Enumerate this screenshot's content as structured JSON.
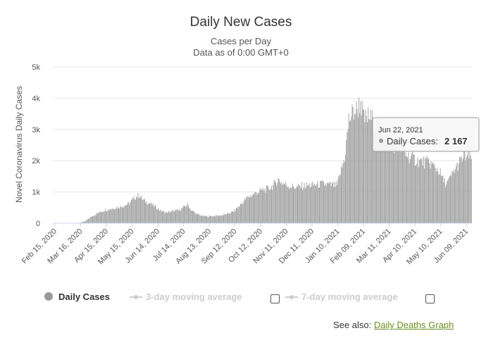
{
  "chart_data": {
    "type": "bar",
    "title": "Daily New Cases",
    "subtitle_lines": [
      "Cases per Day",
      "Data as of 0:00 GMT+0"
    ],
    "ylabel": "Novel Coronavirus Daily Cases",
    "xlabel": "",
    "ylim": [
      0,
      5000
    ],
    "y_ticks": [
      "0",
      "1k",
      "2k",
      "3k",
      "4k",
      "5k"
    ],
    "x_ticks": [
      "Feb 15, 2020",
      "Mar 16, 2020",
      "Apr 15, 2020",
      "May 15, 2020",
      "Jun 14, 2020",
      "Jul 14, 2020",
      "Aug 13, 2020",
      "Sep 12, 2020",
      "Oct 12, 2020",
      "Nov 11, 2020",
      "Dec 11, 2020",
      "Jan 10, 2021",
      "Feb 09, 2021",
      "Mar 11, 2021",
      "Apr 10, 2021",
      "May 10, 2021",
      "Jun 09, 2021"
    ],
    "grid": true,
    "bar_color": "#a5a5a5",
    "series_keyframes": {
      "name": "Daily Cases",
      "points": [
        [
          0,
          0
        ],
        [
          28,
          0
        ],
        [
          32,
          20
        ],
        [
          38,
          60
        ],
        [
          45,
          200
        ],
        [
          55,
          350
        ],
        [
          62,
          420
        ],
        [
          72,
          480
        ],
        [
          82,
          540
        ],
        [
          90,
          620
        ],
        [
          97,
          820
        ],
        [
          102,
          900
        ],
        [
          108,
          720
        ],
        [
          115,
          640
        ],
        [
          122,
          520
        ],
        [
          128,
          400
        ],
        [
          135,
          340
        ],
        [
          142,
          380
        ],
        [
          150,
          420
        ],
        [
          156,
          520
        ],
        [
          160,
          600
        ],
        [
          165,
          400
        ],
        [
          172,
          280
        ],
        [
          180,
          220
        ],
        [
          190,
          230
        ],
        [
          200,
          250
        ],
        [
          208,
          300
        ],
        [
          215,
          380
        ],
        [
          222,
          560
        ],
        [
          230,
          800
        ],
        [
          240,
          950
        ],
        [
          248,
          1050
        ],
        [
          256,
          1100
        ],
        [
          262,
          1200
        ],
        [
          268,
          1400
        ],
        [
          272,
          1300
        ],
        [
          280,
          1200
        ],
        [
          290,
          1150
        ],
        [
          300,
          1200
        ],
        [
          310,
          1220
        ],
        [
          320,
          1250
        ],
        [
          330,
          1220
        ],
        [
          338,
          1200
        ],
        [
          343,
          1700
        ],
        [
          347,
          2100
        ],
        [
          350,
          2800
        ],
        [
          352,
          3300
        ],
        [
          356,
          3500
        ],
        [
          362,
          3650
        ],
        [
          366,
          3900
        ],
        [
          370,
          3300
        ],
        [
          376,
          3400
        ],
        [
          382,
          3250
        ],
        [
          388,
          3000
        ],
        [
          394,
          2900
        ],
        [
          400,
          2600
        ],
        [
          406,
          2500
        ],
        [
          412,
          2450
        ],
        [
          418,
          2250
        ],
        [
          426,
          2100
        ],
        [
          434,
          2000
        ],
        [
          442,
          1950
        ],
        [
          448,
          1950
        ],
        [
          454,
          1800
        ],
        [
          460,
          1650
        ],
        [
          464,
          1400
        ],
        [
          468,
          1250
        ],
        [
          472,
          1400
        ],
        [
          478,
          1700
        ],
        [
          484,
          1950
        ],
        [
          490,
          2150
        ],
        [
          495,
          2100
        ],
        [
          498,
          2150
        ]
      ]
    },
    "highlight": {
      "date": "Jun 22, 2021",
      "value": 2167
    }
  },
  "tooltip": {
    "date": "Jun 22, 2021",
    "label": "Daily Cases:",
    "value": "2 167"
  },
  "legend": [
    {
      "label": "Daily Cases",
      "color": "#999999",
      "active": true
    },
    {
      "label": "3-day moving average",
      "color": "#cccccc",
      "active": false
    },
    {
      "label": "7-day moving average",
      "color": "#cccccc",
      "active": false
    }
  ],
  "see_also": {
    "prefix": "See also:",
    "link": "Daily Deaths Graph"
  }
}
